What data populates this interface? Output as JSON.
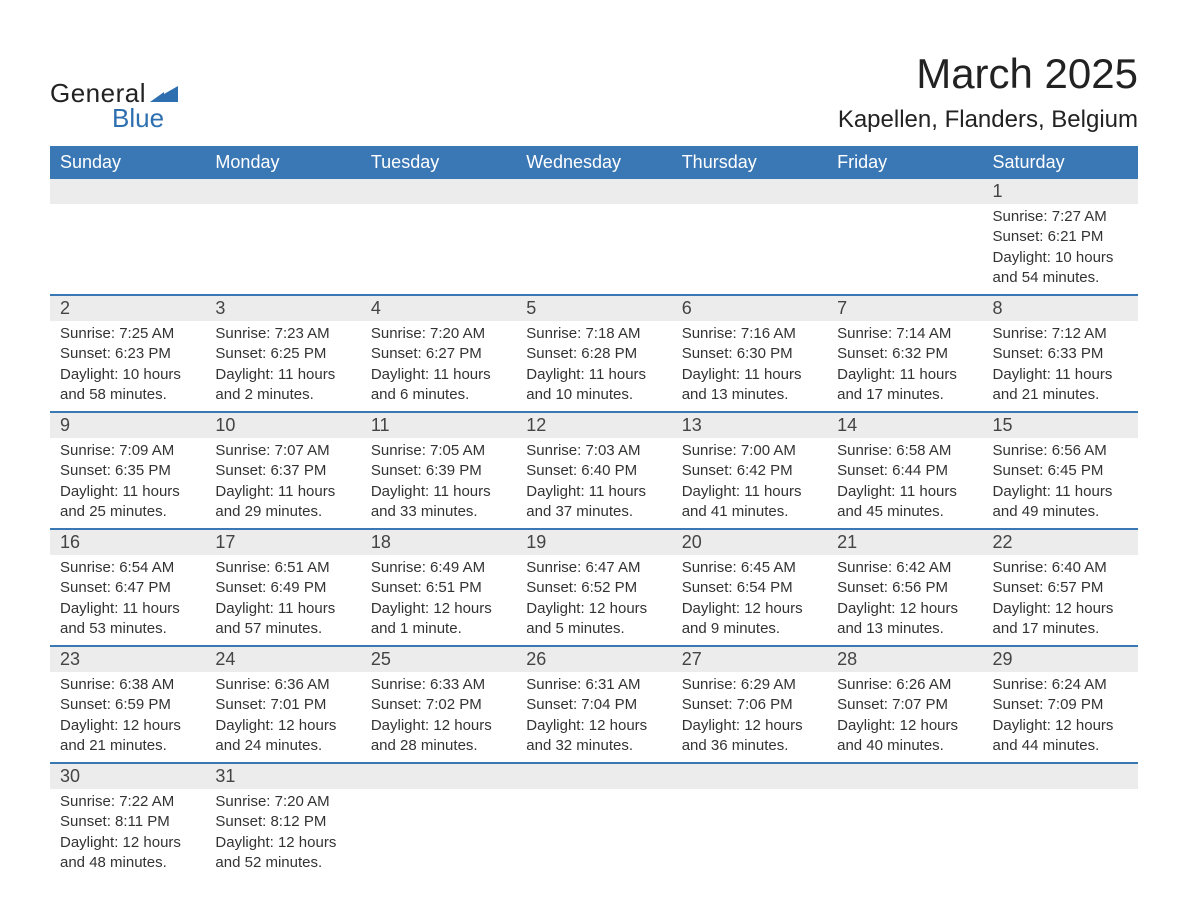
{
  "brand": {
    "part1": "General",
    "part2": "Blue",
    "triangle_color": "#2e6fb0"
  },
  "title": {
    "month": "March 2025",
    "location": "Kapellen, Flanders, Belgium"
  },
  "colors": {
    "header_bg": "#3a77b5",
    "header_text": "#ffffff",
    "daynum_bg": "#ececec",
    "row_divider": "#3a77b5",
    "body_text": "#333333",
    "brand_blue": "#2e6fb0"
  },
  "typography": {
    "month_title_fontsize": 42,
    "location_fontsize": 24,
    "header_fontsize": 18,
    "daynum_fontsize": 18,
    "body_fontsize": 15
  },
  "weekdays": [
    "Sunday",
    "Monday",
    "Tuesday",
    "Wednesday",
    "Thursday",
    "Friday",
    "Saturday"
  ],
  "weeks": [
    [
      null,
      null,
      null,
      null,
      null,
      null,
      {
        "day": "1",
        "sunrise": "Sunrise: 7:27 AM",
        "sunset": "Sunset: 6:21 PM",
        "daylight1": "Daylight: 10 hours",
        "daylight2": "and 54 minutes."
      }
    ],
    [
      {
        "day": "2",
        "sunrise": "Sunrise: 7:25 AM",
        "sunset": "Sunset: 6:23 PM",
        "daylight1": "Daylight: 10 hours",
        "daylight2": "and 58 minutes."
      },
      {
        "day": "3",
        "sunrise": "Sunrise: 7:23 AM",
        "sunset": "Sunset: 6:25 PM",
        "daylight1": "Daylight: 11 hours",
        "daylight2": "and 2 minutes."
      },
      {
        "day": "4",
        "sunrise": "Sunrise: 7:20 AM",
        "sunset": "Sunset: 6:27 PM",
        "daylight1": "Daylight: 11 hours",
        "daylight2": "and 6 minutes."
      },
      {
        "day": "5",
        "sunrise": "Sunrise: 7:18 AM",
        "sunset": "Sunset: 6:28 PM",
        "daylight1": "Daylight: 11 hours",
        "daylight2": "and 10 minutes."
      },
      {
        "day": "6",
        "sunrise": "Sunrise: 7:16 AM",
        "sunset": "Sunset: 6:30 PM",
        "daylight1": "Daylight: 11 hours",
        "daylight2": "and 13 minutes."
      },
      {
        "day": "7",
        "sunrise": "Sunrise: 7:14 AM",
        "sunset": "Sunset: 6:32 PM",
        "daylight1": "Daylight: 11 hours",
        "daylight2": "and 17 minutes."
      },
      {
        "day": "8",
        "sunrise": "Sunrise: 7:12 AM",
        "sunset": "Sunset: 6:33 PM",
        "daylight1": "Daylight: 11 hours",
        "daylight2": "and 21 minutes."
      }
    ],
    [
      {
        "day": "9",
        "sunrise": "Sunrise: 7:09 AM",
        "sunset": "Sunset: 6:35 PM",
        "daylight1": "Daylight: 11 hours",
        "daylight2": "and 25 minutes."
      },
      {
        "day": "10",
        "sunrise": "Sunrise: 7:07 AM",
        "sunset": "Sunset: 6:37 PM",
        "daylight1": "Daylight: 11 hours",
        "daylight2": "and 29 minutes."
      },
      {
        "day": "11",
        "sunrise": "Sunrise: 7:05 AM",
        "sunset": "Sunset: 6:39 PM",
        "daylight1": "Daylight: 11 hours",
        "daylight2": "and 33 minutes."
      },
      {
        "day": "12",
        "sunrise": "Sunrise: 7:03 AM",
        "sunset": "Sunset: 6:40 PM",
        "daylight1": "Daylight: 11 hours",
        "daylight2": "and 37 minutes."
      },
      {
        "day": "13",
        "sunrise": "Sunrise: 7:00 AM",
        "sunset": "Sunset: 6:42 PM",
        "daylight1": "Daylight: 11 hours",
        "daylight2": "and 41 minutes."
      },
      {
        "day": "14",
        "sunrise": "Sunrise: 6:58 AM",
        "sunset": "Sunset: 6:44 PM",
        "daylight1": "Daylight: 11 hours",
        "daylight2": "and 45 minutes."
      },
      {
        "day": "15",
        "sunrise": "Sunrise: 6:56 AM",
        "sunset": "Sunset: 6:45 PM",
        "daylight1": "Daylight: 11 hours",
        "daylight2": "and 49 minutes."
      }
    ],
    [
      {
        "day": "16",
        "sunrise": "Sunrise: 6:54 AM",
        "sunset": "Sunset: 6:47 PM",
        "daylight1": "Daylight: 11 hours",
        "daylight2": "and 53 minutes."
      },
      {
        "day": "17",
        "sunrise": "Sunrise: 6:51 AM",
        "sunset": "Sunset: 6:49 PM",
        "daylight1": "Daylight: 11 hours",
        "daylight2": "and 57 minutes."
      },
      {
        "day": "18",
        "sunrise": "Sunrise: 6:49 AM",
        "sunset": "Sunset: 6:51 PM",
        "daylight1": "Daylight: 12 hours",
        "daylight2": "and 1 minute."
      },
      {
        "day": "19",
        "sunrise": "Sunrise: 6:47 AM",
        "sunset": "Sunset: 6:52 PM",
        "daylight1": "Daylight: 12 hours",
        "daylight2": "and 5 minutes."
      },
      {
        "day": "20",
        "sunrise": "Sunrise: 6:45 AM",
        "sunset": "Sunset: 6:54 PM",
        "daylight1": "Daylight: 12 hours",
        "daylight2": "and 9 minutes."
      },
      {
        "day": "21",
        "sunrise": "Sunrise: 6:42 AM",
        "sunset": "Sunset: 6:56 PM",
        "daylight1": "Daylight: 12 hours",
        "daylight2": "and 13 minutes."
      },
      {
        "day": "22",
        "sunrise": "Sunrise: 6:40 AM",
        "sunset": "Sunset: 6:57 PM",
        "daylight1": "Daylight: 12 hours",
        "daylight2": "and 17 minutes."
      }
    ],
    [
      {
        "day": "23",
        "sunrise": "Sunrise: 6:38 AM",
        "sunset": "Sunset: 6:59 PM",
        "daylight1": "Daylight: 12 hours",
        "daylight2": "and 21 minutes."
      },
      {
        "day": "24",
        "sunrise": "Sunrise: 6:36 AM",
        "sunset": "Sunset: 7:01 PM",
        "daylight1": "Daylight: 12 hours",
        "daylight2": "and 24 minutes."
      },
      {
        "day": "25",
        "sunrise": "Sunrise: 6:33 AM",
        "sunset": "Sunset: 7:02 PM",
        "daylight1": "Daylight: 12 hours",
        "daylight2": "and 28 minutes."
      },
      {
        "day": "26",
        "sunrise": "Sunrise: 6:31 AM",
        "sunset": "Sunset: 7:04 PM",
        "daylight1": "Daylight: 12 hours",
        "daylight2": "and 32 minutes."
      },
      {
        "day": "27",
        "sunrise": "Sunrise: 6:29 AM",
        "sunset": "Sunset: 7:06 PM",
        "daylight1": "Daylight: 12 hours",
        "daylight2": "and 36 minutes."
      },
      {
        "day": "28",
        "sunrise": "Sunrise: 6:26 AM",
        "sunset": "Sunset: 7:07 PM",
        "daylight1": "Daylight: 12 hours",
        "daylight2": "and 40 minutes."
      },
      {
        "day": "29",
        "sunrise": "Sunrise: 6:24 AM",
        "sunset": "Sunset: 7:09 PM",
        "daylight1": "Daylight: 12 hours",
        "daylight2": "and 44 minutes."
      }
    ],
    [
      {
        "day": "30",
        "sunrise": "Sunrise: 7:22 AM",
        "sunset": "Sunset: 8:11 PM",
        "daylight1": "Daylight: 12 hours",
        "daylight2": "and 48 minutes."
      },
      {
        "day": "31",
        "sunrise": "Sunrise: 7:20 AM",
        "sunset": "Sunset: 8:12 PM",
        "daylight1": "Daylight: 12 hours",
        "daylight2": "and 52 minutes."
      },
      null,
      null,
      null,
      null,
      null
    ]
  ]
}
